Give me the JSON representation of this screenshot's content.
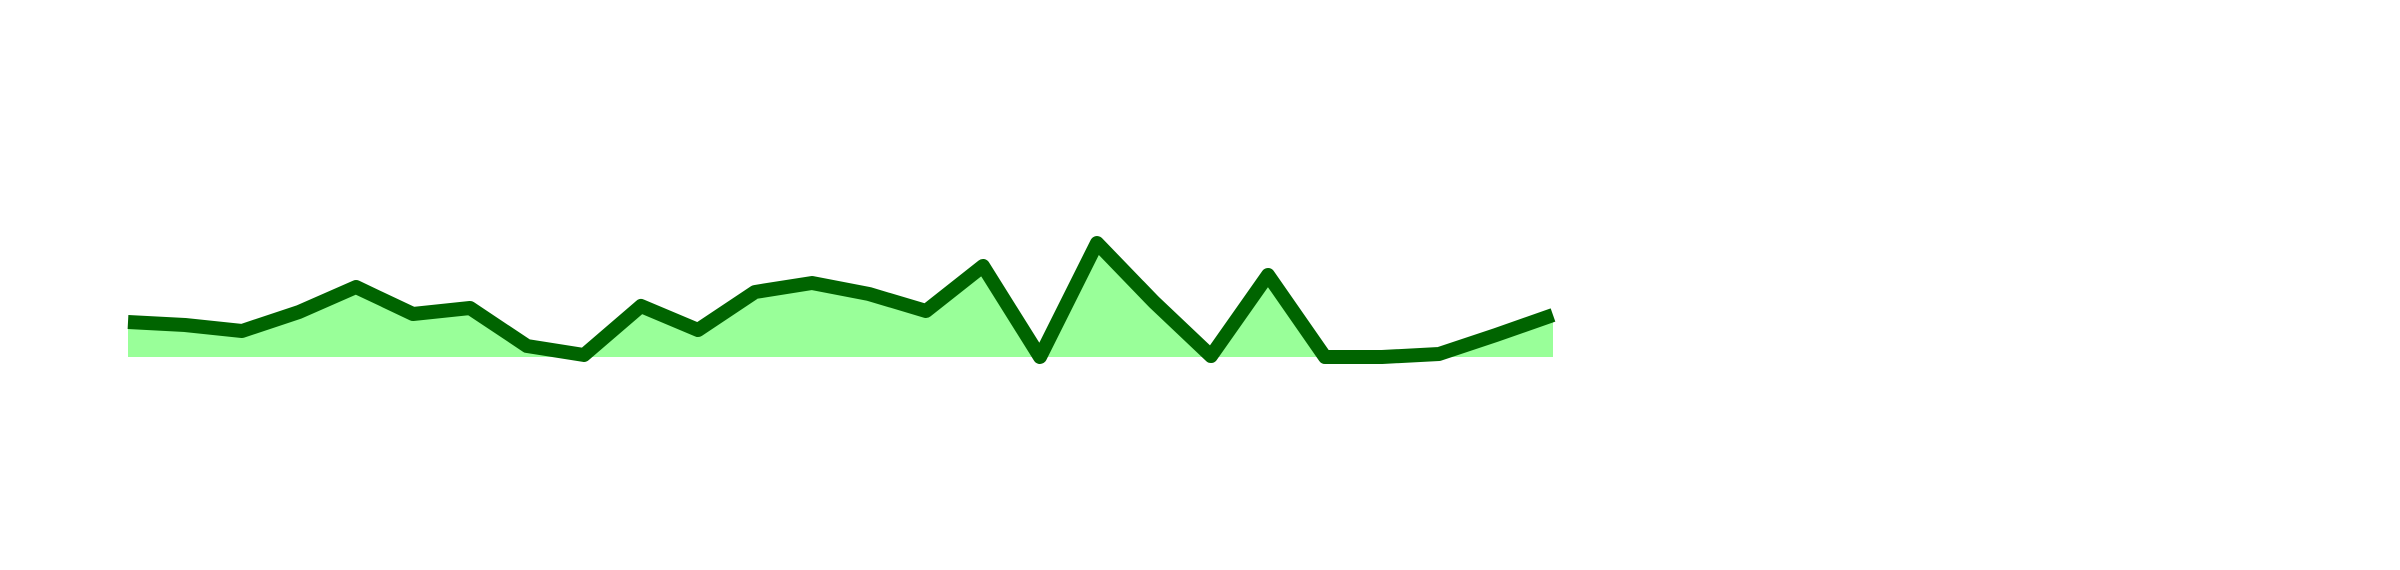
{
  "chart_data": {
    "type": "area",
    "categories": [
      null,
      null,
      null,
      null,
      null,
      null,
      null,
      null,
      null,
      null,
      null,
      null,
      null,
      null,
      null,
      null,
      null,
      null,
      null,
      null,
      null,
      null,
      null,
      null,
      null,
      null
    ],
    "series": [
      {
        "color": "#006400",
        "fill": "#99ff99",
        "values": [
          35,
          32,
          26,
          45,
          70,
          43,
          49,
          11,
          2,
          51,
          27,
          65,
          74,
          63,
          46,
          91,
          0,
          114,
          55,
          1,
          82,
          0,
          0,
          3,
          22,
          42
        ]
      }
    ],
    "ylim": [
      0,
      357
    ]
  }
}
